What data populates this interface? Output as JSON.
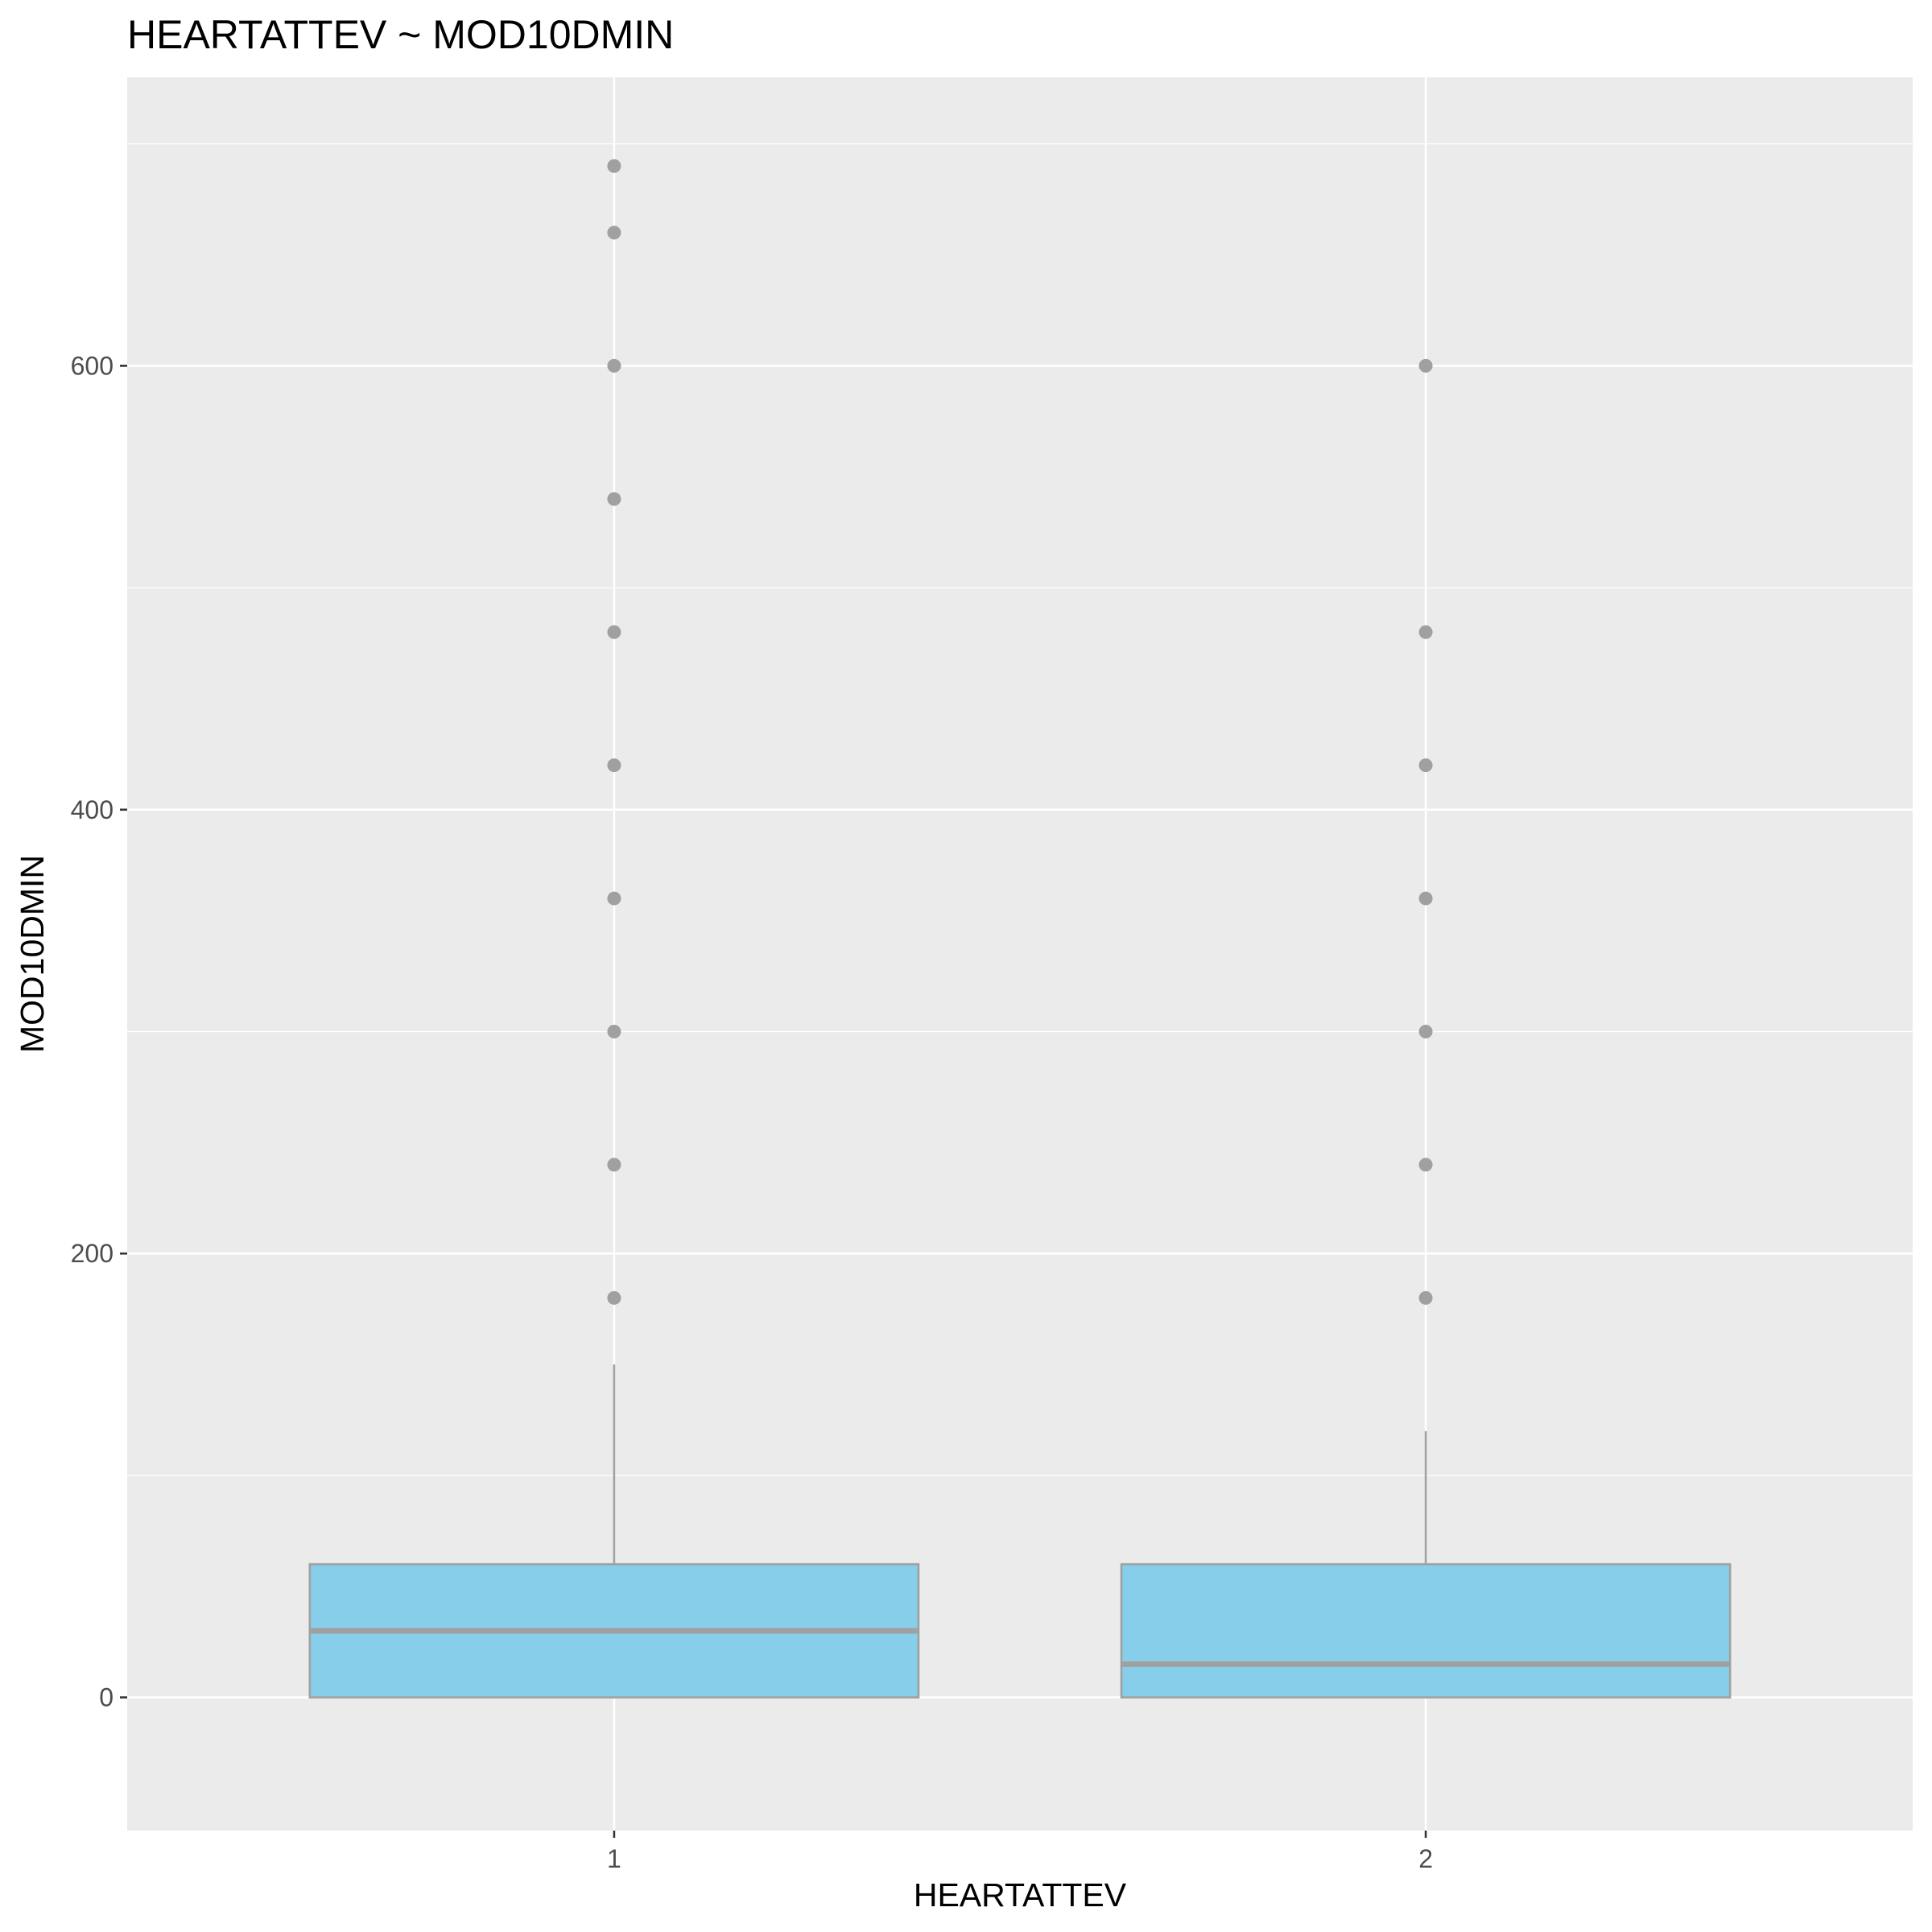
{
  "chart_data": {
    "type": "boxplot",
    "title": "HEARTATTEV ~ MOD10DMIN",
    "xlabel": "HEARTATTEV",
    "ylabel": "MOD10DMIN",
    "ylim": [
      -60,
      730
    ],
    "y_ticks": [
      0,
      200,
      400,
      600
    ],
    "grid": true,
    "colors": {
      "panel_background": "#ebebeb",
      "grid": "#ffffff",
      "box_fill": "#87ceeb",
      "box_line": "#a0a0a0",
      "outlier": "#a0a0a0"
    },
    "categories": [
      "1",
      "2"
    ],
    "boxes": [
      {
        "category": "1",
        "min": 0,
        "q1": 0,
        "median": 30,
        "q3": 60,
        "whisker_high": 150,
        "outliers": [
          180,
          240,
          300,
          360,
          420,
          480,
          540,
          600,
          660,
          690
        ]
      },
      {
        "category": "2",
        "min": 0,
        "q1": 0,
        "median": 15,
        "q3": 60,
        "whisker_high": 120,
        "outliers": [
          180,
          240,
          300,
          360,
          420,
          480,
          600
        ]
      }
    ]
  }
}
